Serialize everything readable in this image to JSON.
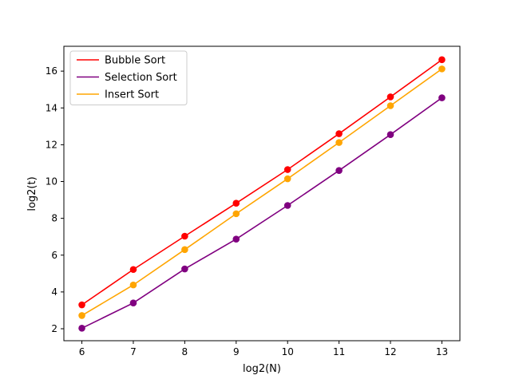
{
  "chart_data": {
    "type": "line",
    "title": "",
    "xlabel": "log2(N)",
    "ylabel": "log2(t)",
    "x": [
      6,
      7,
      8,
      9,
      10,
      11,
      12,
      13
    ],
    "xlim": [
      5.65,
      13.35
    ],
    "ylim": [
      1.35,
      17.35
    ],
    "xticks": [
      6,
      7,
      8,
      9,
      10,
      11,
      12,
      13
    ],
    "yticks": [
      2,
      4,
      6,
      8,
      10,
      12,
      14,
      16
    ],
    "grid": false,
    "legend_position": "top-left",
    "markers": true,
    "series": [
      {
        "name": "Bubble Sort",
        "color": "#ff0000",
        "values": [
          3.3,
          5.22,
          7.03,
          8.82,
          10.65,
          12.6,
          14.6,
          16.62
        ]
      },
      {
        "name": "Selection Sort",
        "color": "#800080",
        "values": [
          2.03,
          3.4,
          5.25,
          6.87,
          8.7,
          10.6,
          12.55,
          14.55
        ]
      },
      {
        "name": "Insert Sort",
        "color": "#ffa500",
        "values": [
          2.72,
          4.38,
          6.3,
          8.25,
          10.15,
          12.12,
          14.12,
          16.12
        ]
      }
    ]
  }
}
